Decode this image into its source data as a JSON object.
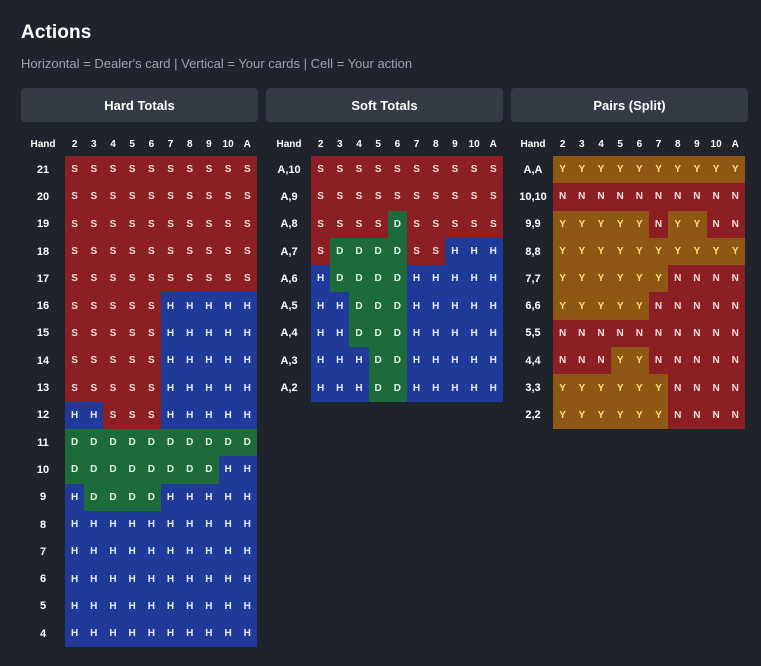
{
  "title": "Actions",
  "subtitle": "Horizontal = Dealer's card | Vertical = Your cards | Cell = Your action",
  "tabs": [
    "Hard Totals",
    "Soft Totals",
    "Pairs (Split)"
  ],
  "hand_header": "Hand",
  "dealer_cards": [
    "2",
    "3",
    "4",
    "5",
    "6",
    "7",
    "8",
    "9",
    "10",
    "A"
  ],
  "tables": {
    "hard": {
      "rows": [
        {
          "label": "21",
          "actions": [
            "S",
            "S",
            "S",
            "S",
            "S",
            "S",
            "S",
            "S",
            "S",
            "S"
          ]
        },
        {
          "label": "20",
          "actions": [
            "S",
            "S",
            "S",
            "S",
            "S",
            "S",
            "S",
            "S",
            "S",
            "S"
          ]
        },
        {
          "label": "19",
          "actions": [
            "S",
            "S",
            "S",
            "S",
            "S",
            "S",
            "S",
            "S",
            "S",
            "S"
          ]
        },
        {
          "label": "18",
          "actions": [
            "S",
            "S",
            "S",
            "S",
            "S",
            "S",
            "S",
            "S",
            "S",
            "S"
          ]
        },
        {
          "label": "17",
          "actions": [
            "S",
            "S",
            "S",
            "S",
            "S",
            "S",
            "S",
            "S",
            "S",
            "S"
          ]
        },
        {
          "label": "16",
          "actions": [
            "S",
            "S",
            "S",
            "S",
            "S",
            "H",
            "H",
            "H",
            "H",
            "H"
          ]
        },
        {
          "label": "15",
          "actions": [
            "S",
            "S",
            "S",
            "S",
            "S",
            "H",
            "H",
            "H",
            "H",
            "H"
          ]
        },
        {
          "label": "14",
          "actions": [
            "S",
            "S",
            "S",
            "S",
            "S",
            "H",
            "H",
            "H",
            "H",
            "H"
          ]
        },
        {
          "label": "13",
          "actions": [
            "S",
            "S",
            "S",
            "S",
            "S",
            "H",
            "H",
            "H",
            "H",
            "H"
          ]
        },
        {
          "label": "12",
          "actions": [
            "H",
            "H",
            "S",
            "S",
            "S",
            "H",
            "H",
            "H",
            "H",
            "H"
          ]
        },
        {
          "label": "11",
          "actions": [
            "D",
            "D",
            "D",
            "D",
            "D",
            "D",
            "D",
            "D",
            "D",
            "D"
          ]
        },
        {
          "label": "10",
          "actions": [
            "D",
            "D",
            "D",
            "D",
            "D",
            "D",
            "D",
            "D",
            "H",
            "H"
          ]
        },
        {
          "label": "9",
          "actions": [
            "H",
            "D",
            "D",
            "D",
            "D",
            "H",
            "H",
            "H",
            "H",
            "H"
          ]
        },
        {
          "label": "8",
          "actions": [
            "H",
            "H",
            "H",
            "H",
            "H",
            "H",
            "H",
            "H",
            "H",
            "H"
          ]
        },
        {
          "label": "7",
          "actions": [
            "H",
            "H",
            "H",
            "H",
            "H",
            "H",
            "H",
            "H",
            "H",
            "H"
          ]
        },
        {
          "label": "6",
          "actions": [
            "H",
            "H",
            "H",
            "H",
            "H",
            "H",
            "H",
            "H",
            "H",
            "H"
          ]
        },
        {
          "label": "5",
          "actions": [
            "H",
            "H",
            "H",
            "H",
            "H",
            "H",
            "H",
            "H",
            "H",
            "H"
          ]
        },
        {
          "label": "4",
          "actions": [
            "H",
            "H",
            "H",
            "H",
            "H",
            "H",
            "H",
            "H",
            "H",
            "H"
          ]
        }
      ]
    },
    "soft": {
      "rows": [
        {
          "label": "A,10",
          "actions": [
            "S",
            "S",
            "S",
            "S",
            "S",
            "S",
            "S",
            "S",
            "S",
            "S"
          ]
        },
        {
          "label": "A,9",
          "actions": [
            "S",
            "S",
            "S",
            "S",
            "S",
            "S",
            "S",
            "S",
            "S",
            "S"
          ]
        },
        {
          "label": "A,8",
          "actions": [
            "S",
            "S",
            "S",
            "S",
            "D",
            "S",
            "S",
            "S",
            "S",
            "S"
          ]
        },
        {
          "label": "A,7",
          "actions": [
            "S",
            "D",
            "D",
            "D",
            "D",
            "S",
            "S",
            "H",
            "H",
            "H"
          ]
        },
        {
          "label": "A,6",
          "actions": [
            "H",
            "D",
            "D",
            "D",
            "D",
            "H",
            "H",
            "H",
            "H",
            "H"
          ]
        },
        {
          "label": "A,5",
          "actions": [
            "H",
            "H",
            "D",
            "D",
            "D",
            "H",
            "H",
            "H",
            "H",
            "H"
          ]
        },
        {
          "label": "A,4",
          "actions": [
            "H",
            "H",
            "D",
            "D",
            "D",
            "H",
            "H",
            "H",
            "H",
            "H"
          ]
        },
        {
          "label": "A,3",
          "actions": [
            "H",
            "H",
            "H",
            "D",
            "D",
            "H",
            "H",
            "H",
            "H",
            "H"
          ]
        },
        {
          "label": "A,2",
          "actions": [
            "H",
            "H",
            "H",
            "D",
            "D",
            "H",
            "H",
            "H",
            "H",
            "H"
          ]
        }
      ]
    },
    "pairs": {
      "rows": [
        {
          "label": "A,A",
          "actions": [
            "Y",
            "Y",
            "Y",
            "Y",
            "Y",
            "Y",
            "Y",
            "Y",
            "Y",
            "Y"
          ]
        },
        {
          "label": "10,10",
          "actions": [
            "N",
            "N",
            "N",
            "N",
            "N",
            "N",
            "N",
            "N",
            "N",
            "N"
          ]
        },
        {
          "label": "9,9",
          "actions": [
            "Y",
            "Y",
            "Y",
            "Y",
            "Y",
            "N",
            "Y",
            "Y",
            "N",
            "N"
          ]
        },
        {
          "label": "8,8",
          "actions": [
            "Y",
            "Y",
            "Y",
            "Y",
            "Y",
            "Y",
            "Y",
            "Y",
            "Y",
            "Y"
          ]
        },
        {
          "label": "7,7",
          "actions": [
            "Y",
            "Y",
            "Y",
            "Y",
            "Y",
            "Y",
            "N",
            "N",
            "N",
            "N"
          ]
        },
        {
          "label": "6,6",
          "actions": [
            "Y",
            "Y",
            "Y",
            "Y",
            "Y",
            "N",
            "N",
            "N",
            "N",
            "N"
          ]
        },
        {
          "label": "5,5",
          "actions": [
            "N",
            "N",
            "N",
            "N",
            "N",
            "N",
            "N",
            "N",
            "N",
            "N"
          ]
        },
        {
          "label": "4,4",
          "actions": [
            "N",
            "N",
            "N",
            "Y",
            "Y",
            "N",
            "N",
            "N",
            "N",
            "N"
          ]
        },
        {
          "label": "3,3",
          "actions": [
            "Y",
            "Y",
            "Y",
            "Y",
            "Y",
            "Y",
            "N",
            "N",
            "N",
            "N"
          ]
        },
        {
          "label": "2,2",
          "actions": [
            "Y",
            "Y",
            "Y",
            "Y",
            "Y",
            "Y",
            "N",
            "N",
            "N",
            "N"
          ]
        }
      ]
    }
  },
  "colors": {
    "stand": "#8b1f23",
    "hit": "#203a9a",
    "double": "#1d6b3a",
    "split_yes": "#8f5714",
    "split_no": "#8b1f23",
    "background": "#1f242c",
    "tab": "#343b46"
  }
}
